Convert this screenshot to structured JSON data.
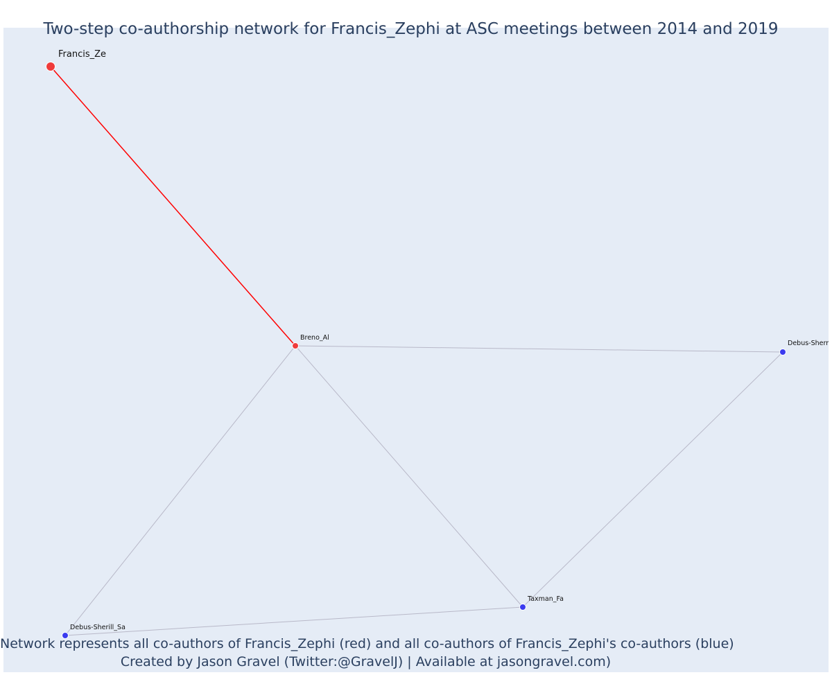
{
  "title": "Two-step co-authorship network for Francis_Zephi at ASC meetings between 2014 and 2019",
  "caption": {
    "line1": "Network represents all co-authors of Francis_Zephi (red) and all co-authors of Francis_Zephi's co-authors (blue)",
    "line2": "Created by Jason Gravel (Twitter:@GravelJ) | Available at jasongravel.com)"
  },
  "colors": {
    "plot_bg": "#e5ecf6",
    "focal_edge": "#ff0000",
    "other_edge": "#b8b8c8",
    "red_node": "#ef3b3b",
    "blue_node": "#3b3bef",
    "text": "#2a3f5f"
  },
  "nodes": [
    {
      "id": "francis",
      "label": "Francis_Ze",
      "group": "red",
      "focal": true
    },
    {
      "id": "breno",
      "label": "Breno_Al",
      "group": "red",
      "focal": false
    },
    {
      "id": "debus_sherr",
      "label": "Debus-Sherr",
      "group": "blue",
      "focal": false
    },
    {
      "id": "taxman",
      "label": "Taxman_Fa",
      "group": "blue",
      "focal": false
    },
    {
      "id": "debus_sherill",
      "label": "Debus-Sherill_Sa",
      "group": "blue",
      "focal": false
    }
  ],
  "edges": [
    {
      "source": "francis",
      "target": "breno",
      "style": "focal"
    },
    {
      "source": "breno",
      "target": "debus_sherr",
      "style": "other"
    },
    {
      "source": "breno",
      "target": "taxman",
      "style": "other"
    },
    {
      "source": "breno",
      "target": "debus_sherill",
      "style": "other"
    },
    {
      "source": "taxman",
      "target": "debus_sherr",
      "style": "other"
    },
    {
      "source": "taxman",
      "target": "debus_sherill",
      "style": "other"
    }
  ]
}
